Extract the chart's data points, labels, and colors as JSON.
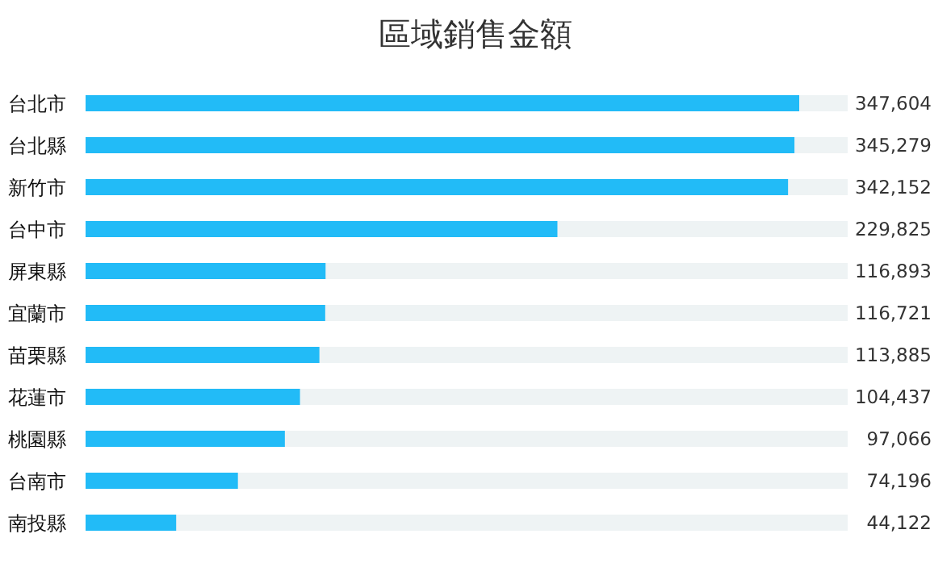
{
  "chart_data": {
    "type": "bar",
    "orientation": "horizontal",
    "title": "區域銷售金額",
    "categories": [
      "台北市",
      "台北縣",
      "新竹市",
      "台中市",
      "屏東縣",
      "宜蘭市",
      "苗栗縣",
      "花蓮市",
      "桃園縣",
      "台南市",
      "南投縣"
    ],
    "values": [
      347604,
      345279,
      342152,
      229825,
      116893,
      116721,
      113885,
      104437,
      97066,
      74196,
      44122
    ],
    "value_labels": [
      "347,604",
      "345,279",
      "342,152",
      "229,825",
      "116,893",
      "116,721",
      "113,885",
      "104,437",
      "97,066",
      "74,196",
      "44,122"
    ],
    "color": "#22bbf7",
    "tick_labels": false
  }
}
